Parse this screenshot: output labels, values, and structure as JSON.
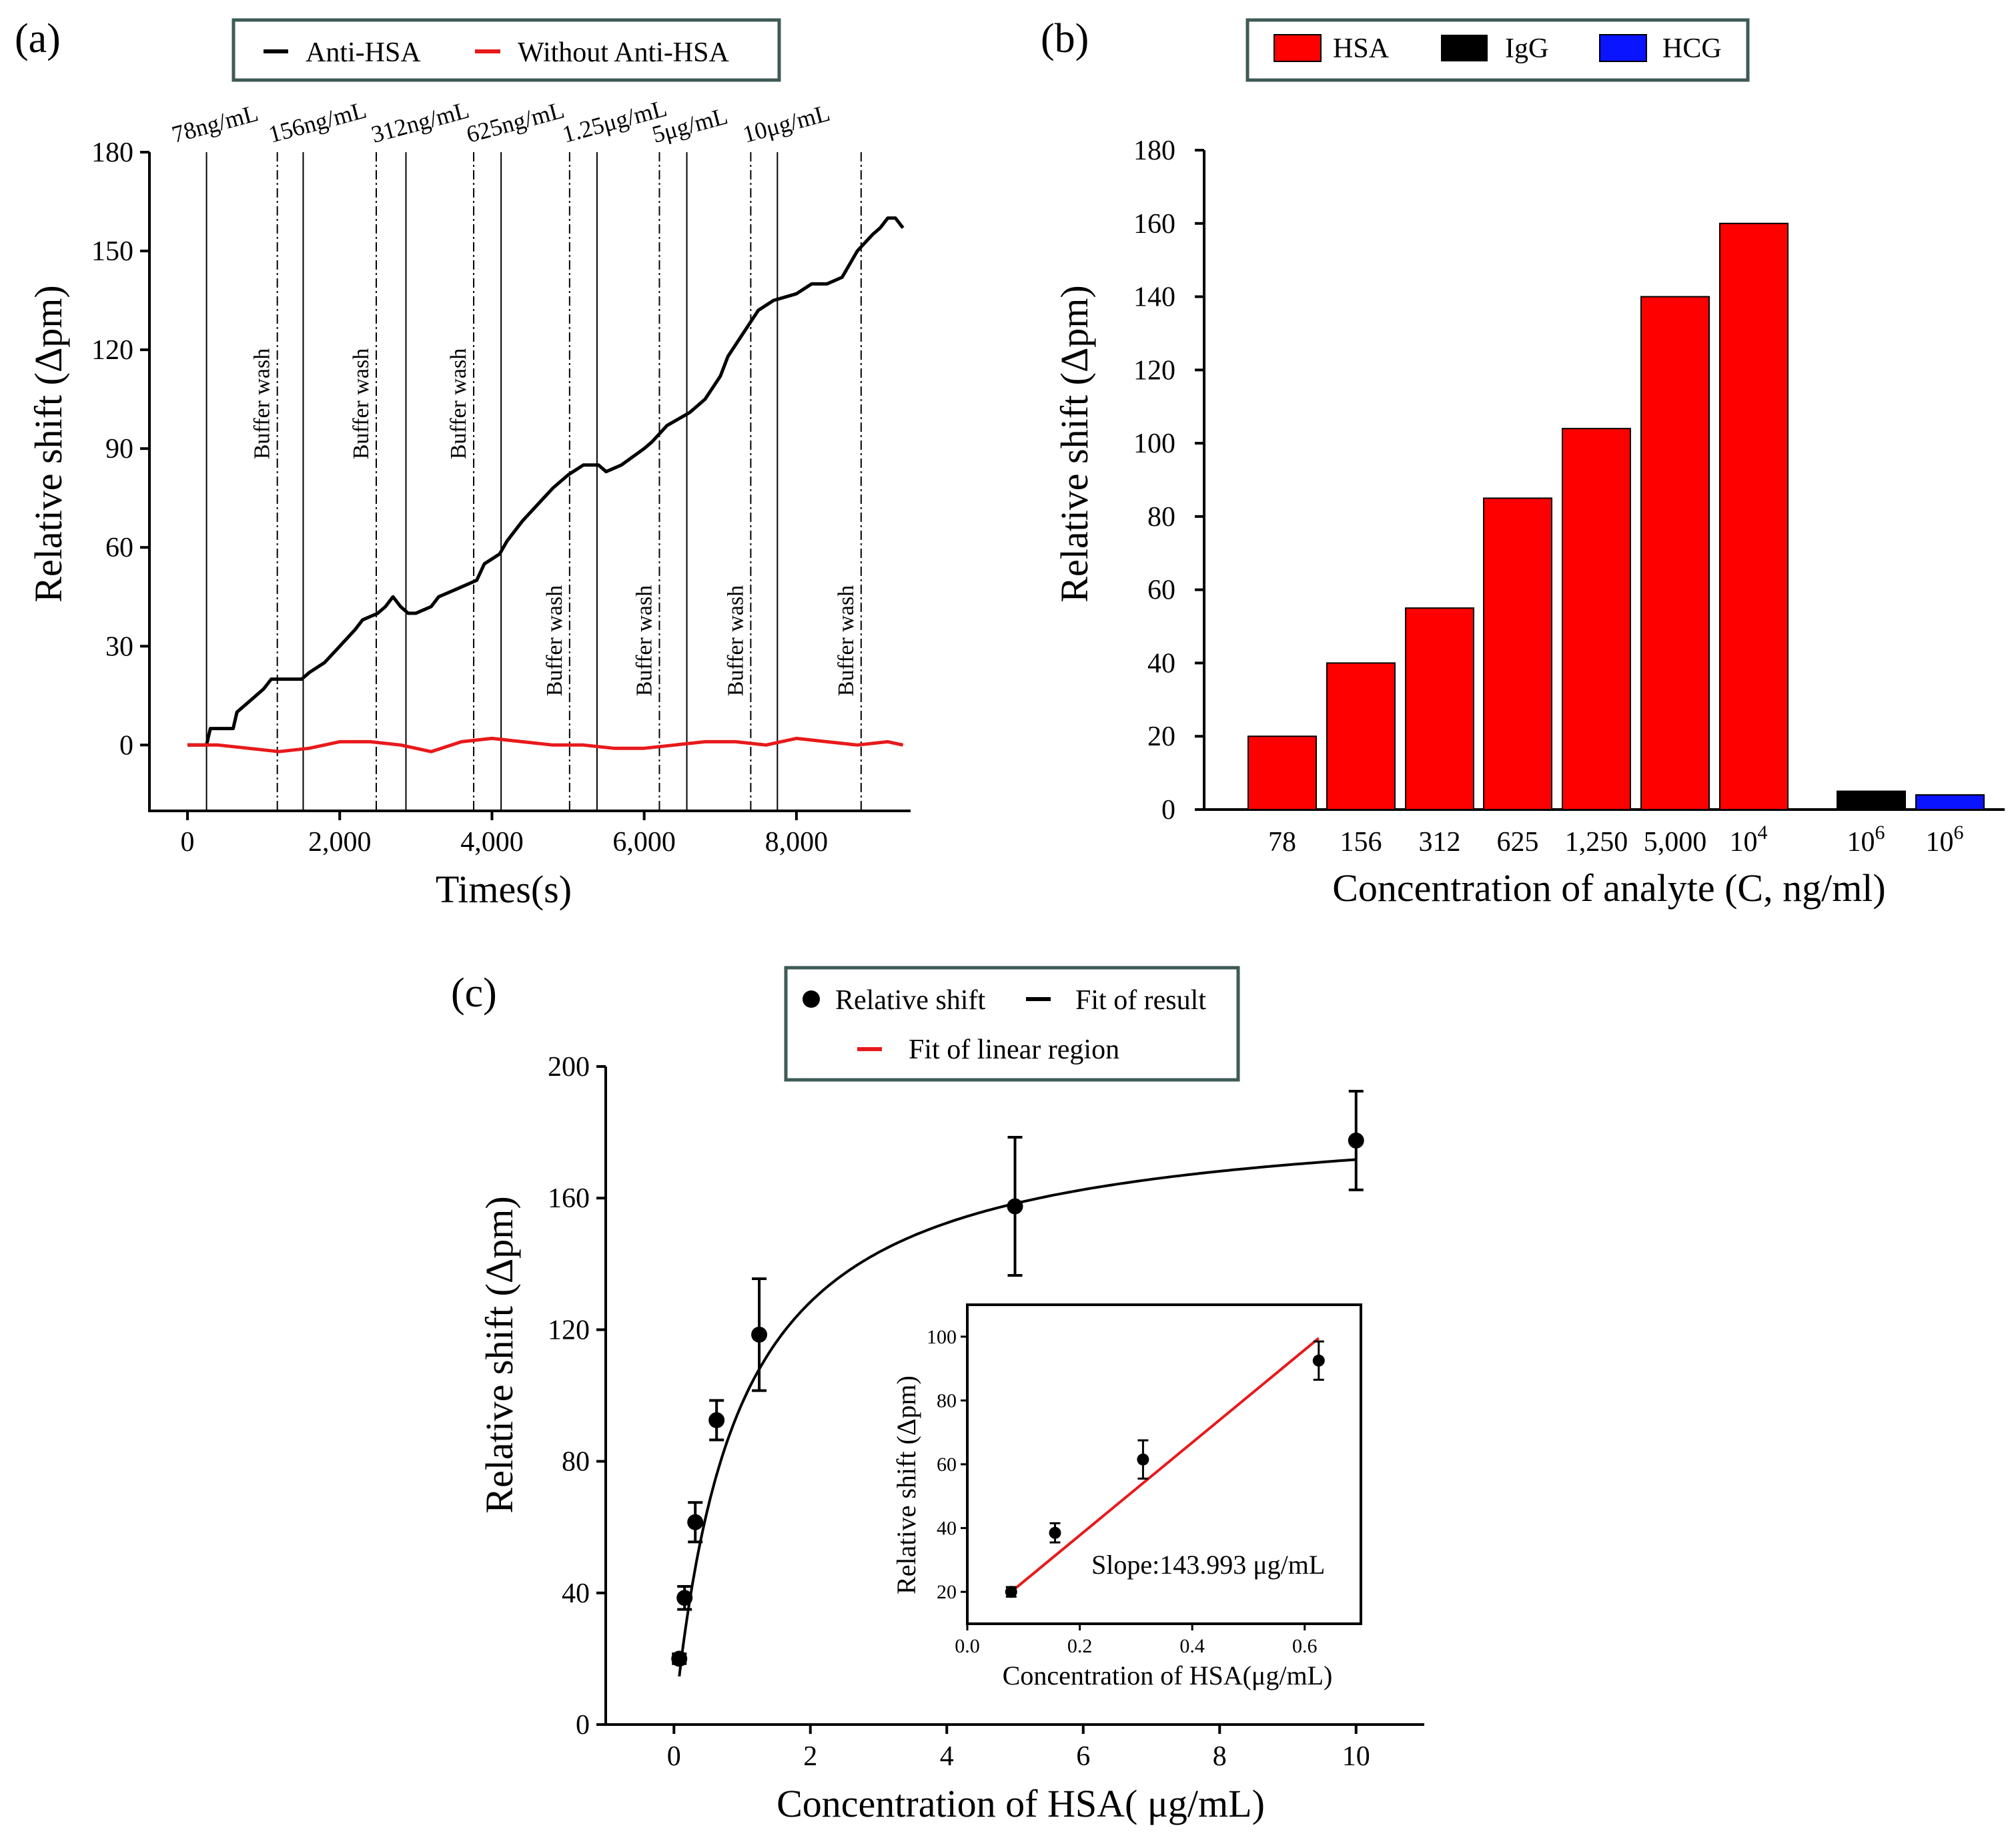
{
  "colors": {
    "black": "#000000",
    "red": "#e8191b",
    "bar_red": "#ff0000",
    "blue": "#0a14ff",
    "frame": "#3f5a56"
  },
  "chart_data": [
    {
      "panel": "(a)",
      "type": "line",
      "xlabel": "Times(s)",
      "ylabel": "Relative shift (Δpm)",
      "xlim": [
        -500,
        9500
      ],
      "ylim": [
        -20,
        180
      ],
      "xticks": [
        0,
        2000,
        4000,
        6000,
        8000
      ],
      "xtick_labels": [
        "0",
        "2,000",
        "4,000",
        "6,000",
        "8,000"
      ],
      "yticks": [
        0,
        30,
        60,
        90,
        120,
        150,
        180
      ],
      "ytick_labels": [
        "0",
        "30",
        "60",
        "90",
        "120",
        "150",
        "180"
      ],
      "legend": {
        "placement": "top",
        "entries": [
          "Anti-HSA",
          "Without Anti-HSA"
        ]
      },
      "injection_times": [
        250,
        1520,
        2870,
        4120,
        5380,
        6560,
        7750
      ],
      "injection_labels": [
        "78ng/mL",
        "156ng/mL",
        "312ng/mL",
        "625ng/mL",
        "1.25μg/mL",
        "5μg/mL",
        "10μg/mL"
      ],
      "wash_times": [
        1180,
        2480,
        3760,
        5020,
        6200,
        7400,
        8850
      ],
      "wash_label": "Buffer wash",
      "series": [
        {
          "name": "Anti-HSA",
          "color": "#000000",
          "x": [
            0,
            250,
            300,
            600,
            650,
            900,
            1000,
            1100,
            1200,
            1500,
            1600,
            1800,
            2000,
            2200,
            2300,
            2500,
            2600,
            2700,
            2800,
            2900,
            3000,
            3200,
            3300,
            3500,
            3600,
            3800,
            3900,
            4100,
            4200,
            4400,
            4600,
            4800,
            5000,
            5200,
            5400,
            5500,
            5700,
            6000,
            6100,
            6300,
            6600,
            6800,
            7000,
            7100,
            7300,
            7500,
            7700,
            8000,
            8200,
            8400,
            8600,
            8800,
            9000,
            9100,
            9200,
            9300,
            9400
          ],
          "y": [
            0,
            0,
            5,
            5,
            10,
            15,
            17,
            20,
            20,
            20,
            22,
            25,
            30,
            35,
            38,
            40,
            42,
            45,
            42,
            40,
            40,
            42,
            45,
            47,
            48,
            50,
            55,
            58,
            62,
            68,
            73,
            78,
            82,
            85,
            85,
            83,
            85,
            90,
            92,
            97,
            101,
            105,
            112,
            118,
            125,
            132,
            135,
            137,
            140,
            140,
            142,
            150,
            155,
            157,
            160,
            160,
            157
          ]
        },
        {
          "name": "Without Anti-HSA",
          "color": "#e8191b",
          "x": [
            0,
            400,
            800,
            1200,
            1600,
            2000,
            2400,
            2800,
            3200,
            3600,
            4000,
            4400,
            4800,
            5200,
            5600,
            6000,
            6400,
            6800,
            7200,
            7600,
            8000,
            8400,
            8800,
            9200,
            9400
          ],
          "y": [
            0,
            0,
            -1,
            -2,
            -1,
            1,
            1,
            0,
            -2,
            1,
            2,
            1,
            0,
            0,
            -1,
            -1,
            0,
            1,
            1,
            0,
            2,
            1,
            0,
            1,
            0
          ]
        }
      ]
    },
    {
      "panel": "(b)",
      "type": "bar",
      "xlabel": "Concentration of analyte (C, ng/ml)",
      "ylabel": "Relative shift (Δpm)",
      "ylim": [
        0,
        180
      ],
      "yticks": [
        0,
        20,
        40,
        60,
        80,
        100,
        120,
        140,
        160,
        180
      ],
      "ytick_labels": [
        "0",
        "20",
        "40",
        "60",
        "80",
        "100",
        "120",
        "140",
        "160",
        "180"
      ],
      "legend": {
        "placement": "top",
        "entries": [
          "HSA",
          "IgG",
          "HCG"
        ]
      },
      "categories": [
        "78",
        "156",
        "312",
        "625",
        "1,250",
        "5,000",
        "10^4",
        "10^6",
        "10^6"
      ],
      "values": [
        20,
        40,
        55,
        85,
        104,
        140,
        160,
        5,
        4
      ],
      "bar_series": [
        "HSA",
        "HSA",
        "HSA",
        "HSA",
        "HSA",
        "HSA",
        "HSA",
        "IgG",
        "HCG"
      ],
      "tick_base": "10",
      "tick_exponents": [
        "",
        "",
        "",
        "",
        "",
        "",
        "4",
        "6",
        "6"
      ]
    },
    {
      "panel": "(c)",
      "type": "scatter",
      "xlabel": "Concentration of HSA( μg/mL)",
      "ylabel": "Relative shift (Δpm)",
      "xlim": [
        -1,
        11
      ],
      "ylim": [
        0,
        200
      ],
      "xticks": [
        0,
        2,
        4,
        6,
        8,
        10
      ],
      "xtick_labels": [
        "0",
        "2",
        "4",
        "6",
        "8",
        "10"
      ],
      "yticks": [
        0,
        40,
        80,
        120,
        160,
        200
      ],
      "ytick_labels": [
        "0",
        "40",
        "80",
        "120",
        "160",
        "200"
      ],
      "legend": {
        "placement": "top",
        "entries": [
          "Relative shift",
          "Fit of result",
          "Fit of linear region"
        ]
      },
      "points": {
        "x": [
          0.078,
          0.156,
          0.3125,
          0.625,
          1.25,
          5,
          10
        ],
        "y": [
          20,
          38.5,
          61.5,
          92.5,
          118.5,
          157.5,
          177.5
        ],
        "err": [
          1.5,
          3.5,
          6,
          6,
          17,
          21,
          15
        ]
      },
      "fit_result": {
        "vmax": 187.5,
        "k": 0.92
      },
      "inset": {
        "type": "scatter",
        "xlabel": "Concentration of HSA(μg/mL)",
        "ylabel": "Relative shift (Δpm)",
        "xlim": [
          0,
          0.7
        ],
        "ylim": [
          10,
          110
        ],
        "xticks": [
          0.0,
          0.2,
          0.4,
          0.6
        ],
        "xtick_labels": [
          "0.0",
          "0.2",
          "0.4",
          "0.6"
        ],
        "yticks": [
          20,
          40,
          60,
          80,
          100
        ],
        "ytick_labels": [
          "20",
          "40",
          "60",
          "80",
          "100"
        ],
        "points": {
          "x": [
            0.078,
            0.156,
            0.3125,
            0.625
          ],
          "y": [
            20,
            38.5,
            61.5,
            92.5
          ],
          "err": [
            1.5,
            3,
            6,
            6
          ]
        },
        "fit_line": {
          "x": [
            0.078,
            0.625
          ],
          "y": [
            20,
            99.5
          ]
        },
        "annotation": "Slope:143.993 μg/mL"
      }
    }
  ]
}
